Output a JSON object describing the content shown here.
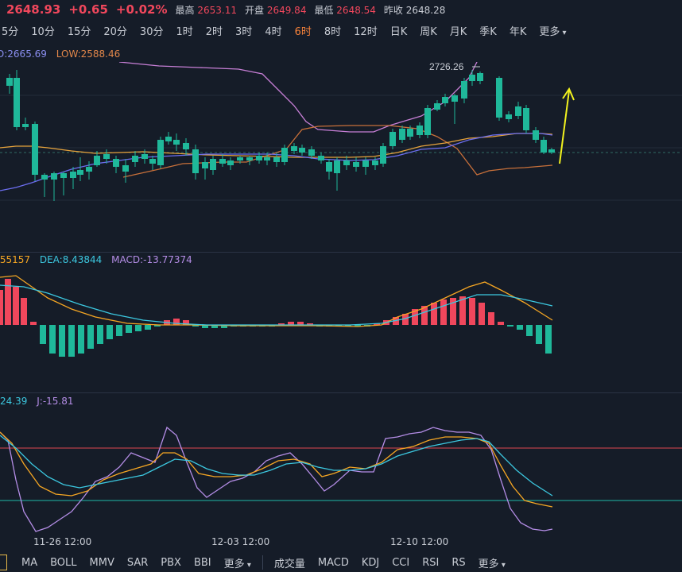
{
  "quote": {
    "price": "2648.93",
    "change": "+0.65",
    "change_pct": "+0.02%",
    "high_label": "最高",
    "high": "2653.11",
    "open_label": "开盘",
    "open": "2649.84",
    "low_label": "最低",
    "low": "2648.54",
    "prev_label": "昨收",
    "prev": "2648.28"
  },
  "periods": [
    "5分",
    "10分",
    "15分",
    "20分",
    "30分",
    "1时",
    "2时",
    "3时",
    "4时",
    "6时",
    "8时",
    "12时",
    "日K",
    "周K",
    "月K",
    "季K",
    "年K",
    "更多"
  ],
  "active_period": "6时",
  "main_legend": {
    "boll_up": "D:2665.69",
    "boll_low": "LOW:2588.46"
  },
  "macd_legend": {
    "dif": ".55157",
    "dea": "DEA:8.43844",
    "macd": "MACD:-13.77374"
  },
  "kdj_legend": {
    "k": ":24.39",
    "j": "J:-15.81"
  },
  "annotation": "2726.26",
  "date_axis": [
    "11-26 12:00",
    "12-03 12:00",
    "12-10 12:00"
  ],
  "indicators_main": [
    "MA",
    "BOLL",
    "MMV",
    "SAR",
    "PBX",
    "BBI",
    "更多"
  ],
  "indicators_sub": [
    "成交量",
    "MACD",
    "KDJ",
    "CCI",
    "RSI",
    "RS",
    "更多"
  ],
  "colors": {
    "up": "#f0475c",
    "down": "#1fb89a",
    "boll_upper": "#c77fd6",
    "boll_lower": "#c8703a",
    "ma_slow": "#e8a43c",
    "ma_fast": "#6c6ef0",
    "arrow": "#f2f21e"
  }
}
